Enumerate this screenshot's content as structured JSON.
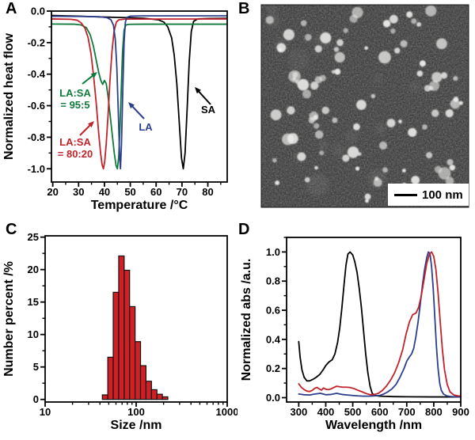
{
  "panels": {
    "A": {
      "label": "A"
    },
    "B": {
      "label": "B",
      "scale_bar_text": "100 nm",
      "description": "TEM micrograph of nanoparticles"
    },
    "C": {
      "label": "C"
    },
    "D": {
      "label": "D"
    }
  },
  "colors": {
    "sa_black": "#000000",
    "la_blue": "#2c3e8c",
    "ratio95_green": "#107a3d",
    "ratio80_red": "#c2222a",
    "bar_red": "#d11f26"
  },
  "chart_data": [
    {
      "id": "dsc",
      "type": "line",
      "xlabel": "Temperature /°C",
      "ylabel": "Normalized heat flow",
      "xlim": [
        19.5,
        87.5
      ],
      "ylim": [
        -1.084,
        0
      ],
      "xticks": [
        20,
        30,
        40,
        50,
        60,
        70,
        80
      ],
      "xtick_labels": [
        "20",
        "30",
        "40",
        "50",
        "60",
        "70",
        "80"
      ],
      "xminor_step": 5,
      "yticks": [
        0,
        -0.2,
        -0.4,
        -0.6,
        -0.8,
        -1.0
      ],
      "ytick_labels": [
        "0.0",
        "-0.2",
        "-0.4",
        "-0.6",
        "-0.8",
        "-1.0"
      ],
      "yminor_step": 0.1,
      "grid": false,
      "series": [
        {
          "name": "SA",
          "color": "#000000",
          "x": [
            19.5,
            25,
            30,
            35,
            40,
            45,
            50,
            55,
            58,
            61,
            63,
            64.5,
            66,
            67,
            68,
            69,
            69.8,
            70.5,
            71.2,
            72,
            72.8,
            73.6,
            74.5,
            76,
            80,
            88
          ],
          "y": [
            -0.028,
            -0.03,
            -0.032,
            -0.035,
            -0.038,
            -0.04,
            -0.042,
            -0.045,
            -0.05,
            -0.056,
            -0.07,
            -0.1,
            -0.17,
            -0.28,
            -0.46,
            -0.72,
            -0.93,
            -1.0,
            -0.9,
            -0.62,
            -0.32,
            -0.13,
            -0.065,
            -0.05,
            -0.047,
            -0.046
          ]
        },
        {
          "name": "LA:SA = 95:5",
          "color": "#107a3d",
          "x": [
            19.5,
            28,
            31,
            33,
            34.5,
            35.7,
            36.8,
            37.8,
            38.6,
            39.3,
            40.0,
            40.7,
            41.4,
            42.2,
            43.0,
            43.8,
            44.5,
            45.0,
            45.5,
            46.0,
            46.5,
            47.0,
            47.6,
            48.3,
            49.5,
            55,
            88
          ],
          "y": [
            -0.082,
            -0.083,
            -0.088,
            -0.105,
            -0.15,
            -0.22,
            -0.31,
            -0.39,
            -0.44,
            -0.465,
            -0.44,
            -0.46,
            -0.54,
            -0.66,
            -0.78,
            -0.9,
            -0.98,
            -1.0,
            -0.93,
            -0.75,
            -0.5,
            -0.26,
            -0.12,
            -0.088,
            -0.084,
            -0.083,
            -0.083
          ]
        },
        {
          "name": "LA:SA = 80:20",
          "color": "#c2222a",
          "x": [
            19.5,
            27,
            29.5,
            31,
            32.5,
            33.7,
            34.8,
            35.8,
            36.8,
            37.7,
            38.5,
            39.1,
            39.6,
            40.1,
            40.7,
            41.4,
            42.1,
            42.9,
            43.7,
            44.6,
            45.6,
            48,
            88
          ],
          "y": [
            -0.05,
            -0.052,
            -0.058,
            -0.075,
            -0.11,
            -0.17,
            -0.27,
            -0.41,
            -0.58,
            -0.76,
            -0.9,
            -0.975,
            -1.0,
            -0.955,
            -0.84,
            -0.66,
            -0.45,
            -0.26,
            -0.13,
            -0.07,
            -0.055,
            -0.051,
            -0.05
          ]
        },
        {
          "name": "LA",
          "color": "#2c3e8c",
          "x": [
            19.5,
            30,
            38,
            41,
            42.5,
            43.5,
            44.2,
            44.8,
            45.4,
            45.9,
            46.2,
            46.6,
            47.1,
            47.6,
            48.1,
            48.7,
            50,
            55,
            88
          ],
          "y": [
            -0.033,
            -0.034,
            -0.036,
            -0.042,
            -0.055,
            -0.09,
            -0.18,
            -0.36,
            -0.66,
            -0.93,
            -1.0,
            -0.84,
            -0.5,
            -0.2,
            -0.07,
            -0.04,
            -0.032,
            -0.03,
            -0.03
          ]
        }
      ],
      "annotations": [
        {
          "id": "g95",
          "lines": [
            "LA:SA",
            "= 95:5"
          ],
          "color": "#107a3d"
        },
        {
          "id": "r80",
          "lines": [
            "LA:SA",
            "= 80:20"
          ],
          "color": "#c2222a"
        },
        {
          "id": "la",
          "lines": [
            "LA"
          ],
          "color": "#2c3e8c"
        },
        {
          "id": "sa",
          "lines": [
            "SA"
          ],
          "color": "#000000"
        }
      ]
    },
    {
      "id": "size_histogram",
      "type": "bar",
      "xscale": "log",
      "xlabel": "Size /nm",
      "ylabel": "Number percent /%",
      "xlim": [
        10,
        1000
      ],
      "ylim": [
        -0.4,
        25.2
      ],
      "xticks": [
        10,
        100,
        1000
      ],
      "xtick_labels": [
        "10",
        "100",
        "1000"
      ],
      "yticks": [
        0,
        5,
        10,
        15,
        20,
        25
      ],
      "ytick_labels": [
        "0",
        "5",
        "10",
        "15",
        "20",
        "25"
      ],
      "yminor_step": 2.5,
      "bar_color": "#d11f26",
      "bar_edge_color": "#111111",
      "bin_edges": [
        42.5,
        48.8,
        56.0,
        64.3,
        73.8,
        84.7,
        97.3,
        111.7,
        128.2,
        147.2,
        169.0,
        194.0,
        222.7
      ],
      "values": [
        0.7,
        6.5,
        16.5,
        22.1,
        19.9,
        14.3,
        8.9,
        5.2,
        2.8,
        1.5,
        0.8,
        0.4
      ]
    },
    {
      "id": "absorbance",
      "type": "line",
      "xlabel": "Wavelength /nm",
      "ylabel": "Normalized abs /a.u.",
      "xlim": [
        255,
        900
      ],
      "ylim": [
        -0.03,
        1.1
      ],
      "xticks": [
        300,
        400,
        500,
        600,
        700,
        800,
        900
      ],
      "xtick_labels": [
        "300",
        "400",
        "500",
        "600",
        "700",
        "800",
        "900"
      ],
      "xminor_step": 50,
      "yticks": [
        0,
        0.2,
        0.4,
        0.6,
        0.8,
        1.0
      ],
      "ytick_labels": [
        "0.0",
        "0.2",
        "0.4",
        "0.6",
        "0.8",
        "1.0"
      ],
      "yminor_step": 0.1,
      "grid": false,
      "series": [
        {
          "name": "black spectrum",
          "color": "#000000",
          "x": [
            300,
            305,
            312,
            320,
            330,
            340,
            352,
            365,
            378,
            390,
            400,
            412,
            424,
            434,
            444,
            452,
            460,
            468,
            475,
            482,
            490,
            500,
            508,
            516,
            524,
            532,
            540,
            548,
            556,
            564,
            572,
            582,
            600,
            650,
            700,
            800,
            900
          ],
          "y": [
            0.385,
            0.28,
            0.19,
            0.14,
            0.115,
            0.115,
            0.125,
            0.14,
            0.16,
            0.19,
            0.22,
            0.245,
            0.26,
            0.3,
            0.38,
            0.48,
            0.62,
            0.78,
            0.91,
            0.985,
            1.0,
            0.98,
            0.93,
            0.86,
            0.75,
            0.62,
            0.46,
            0.3,
            0.17,
            0.08,
            0.03,
            0.015,
            0.01,
            0.007,
            0.006,
            0.005,
            0.005
          ]
        },
        {
          "name": "blue spectrum",
          "color": "#2c3e8c",
          "x": [
            300,
            320,
            340,
            360,
            380,
            400,
            420,
            440,
            460,
            480,
            500,
            520,
            540,
            560,
            580,
            600,
            615,
            630,
            645,
            660,
            675,
            690,
            700,
            710,
            718,
            726,
            734,
            742,
            750,
            758,
            766,
            774,
            780,
            786,
            792,
            798,
            804,
            810,
            816,
            822,
            828,
            836,
            848,
            862,
            880,
            900
          ],
          "y": [
            0.025,
            0.02,
            0.018,
            0.025,
            0.03,
            0.02,
            0.022,
            0.03,
            0.022,
            0.018,
            0.015,
            0.012,
            0.01,
            0.01,
            0.012,
            0.015,
            0.025,
            0.04,
            0.06,
            0.09,
            0.14,
            0.2,
            0.25,
            0.28,
            0.3,
            0.34,
            0.42,
            0.52,
            0.64,
            0.77,
            0.88,
            0.96,
            1.0,
            0.99,
            0.9,
            0.75,
            0.55,
            0.35,
            0.2,
            0.1,
            0.05,
            0.025,
            0.012,
            0.008,
            0.006,
            0.005
          ]
        },
        {
          "name": "red spectrum",
          "color": "#c2222a",
          "x": [
            300,
            310,
            320,
            330,
            340,
            350,
            360,
            368,
            376,
            384,
            392,
            400,
            410,
            420,
            430,
            440,
            450,
            462,
            475,
            490,
            505,
            520,
            535,
            550,
            565,
            580,
            595,
            610,
            625,
            640,
            655,
            670,
            685,
            698,
            710,
            722,
            734,
            744,
            754,
            764,
            774,
            784,
            792,
            800,
            808,
            816,
            824,
            832,
            840,
            850,
            860,
            875,
            890,
            900
          ],
          "y": [
            0.095,
            0.07,
            0.055,
            0.045,
            0.042,
            0.05,
            0.065,
            0.07,
            0.06,
            0.052,
            0.066,
            0.058,
            0.055,
            0.06,
            0.07,
            0.078,
            0.075,
            0.072,
            0.072,
            0.07,
            0.062,
            0.05,
            0.04,
            0.028,
            0.02,
            0.022,
            0.03,
            0.05,
            0.08,
            0.12,
            0.17,
            0.24,
            0.33,
            0.44,
            0.52,
            0.57,
            0.58,
            0.62,
            0.7,
            0.81,
            0.92,
            0.985,
            1.0,
            0.97,
            0.88,
            0.72,
            0.52,
            0.33,
            0.19,
            0.09,
            0.04,
            0.018,
            0.012,
            0.01
          ]
        }
      ],
      "annotations": []
    }
  ]
}
